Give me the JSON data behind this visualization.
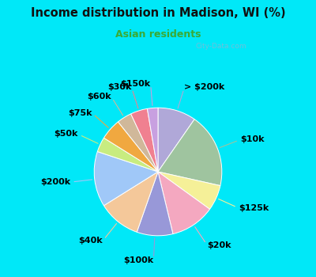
{
  "title": "Income distribution in Madison, WI (%)",
  "subtitle": "Asian residents",
  "title_color": "#111111",
  "subtitle_color": "#3aaa35",
  "bg_outer": "#00e8f8",
  "bg_inner": "#d8eed8",
  "watermark": "City-Data.com",
  "labels": [
    "> $200k",
    "$10k",
    "$125k",
    "$20k",
    "$100k",
    "$40k",
    "$200k",
    "$50k",
    "$75k",
    "$60k",
    "$30k",
    "$150k"
  ],
  "values": [
    9.0,
    17.5,
    6.0,
    10.5,
    8.5,
    10.0,
    13.0,
    3.5,
    5.0,
    3.5,
    4.0,
    2.5
  ],
  "colors": [
    "#b0a8d8",
    "#9fc49f",
    "#f5f098",
    "#f4a8c0",
    "#9898d8",
    "#f4c89a",
    "#a0c8f8",
    "#c8ec80",
    "#f0a840",
    "#d0b89a",
    "#f08090",
    "#c8a0e0"
  ],
  "startangle": 90,
  "label_fontsize": 8,
  "label_color": "#000000",
  "line_colors": [
    "#b0a8d8",
    "#9fc49f",
    "#f5f098",
    "#f4a8c0",
    "#9898d8",
    "#f4c89a",
    "#a0c8f8",
    "#c8ec80",
    "#f0a840",
    "#d0b89a",
    "#f08090",
    "#c8a0e0"
  ]
}
